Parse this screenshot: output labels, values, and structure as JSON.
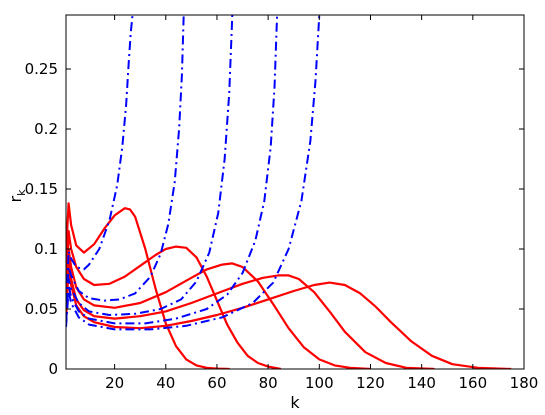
{
  "chart_data": {
    "type": "line",
    "title": "",
    "xlabel": "k",
    "ylabel": {
      "main": "r",
      "subscript": "k"
    },
    "xlim": [
      1,
      180
    ],
    "ylim": [
      0,
      0.295
    ],
    "x_ticks": [
      20,
      40,
      60,
      80,
      100,
      120,
      140,
      160,
      180
    ],
    "y_ticks": [
      0,
      0.05,
      0.1,
      0.15,
      0.2,
      0.25
    ],
    "x_tick_labels": [
      "20",
      "40",
      "60",
      "80",
      "100",
      "120",
      "140",
      "160",
      "180"
    ],
    "y_tick_labels": [
      "0",
      "0.05",
      "0.1",
      "0.15",
      "0.2",
      "0.25"
    ],
    "grid": false,
    "legend": "none",
    "colors": {
      "solid": "#ff0000",
      "dashdot": "#0000ff",
      "axes": "#000000"
    },
    "series": [
      {
        "style": "solid",
        "color": "#ff0000",
        "x": [
          1,
          2,
          3,
          5,
          8,
          12,
          16,
          20,
          24,
          26,
          28,
          32,
          36,
          40,
          44,
          48,
          52,
          56,
          60,
          65
        ],
        "y": [
          0.095,
          0.138,
          0.12,
          0.103,
          0.097,
          0.104,
          0.117,
          0.128,
          0.134,
          0.133,
          0.127,
          0.1,
          0.067,
          0.038,
          0.019,
          0.008,
          0.003,
          0.001,
          0.0003,
          0.0
        ]
      },
      {
        "style": "solid",
        "color": "#ff0000",
        "x": [
          1,
          2,
          3,
          5,
          8,
          12,
          18,
          24,
          30,
          36,
          40,
          44,
          48,
          52,
          56,
          60,
          64,
          68,
          72,
          76,
          80,
          85
        ],
        "y": [
          0.06,
          0.115,
          0.1,
          0.085,
          0.075,
          0.07,
          0.071,
          0.077,
          0.086,
          0.095,
          0.1,
          0.102,
          0.101,
          0.093,
          0.077,
          0.057,
          0.037,
          0.022,
          0.011,
          0.005,
          0.002,
          0.0
        ]
      },
      {
        "style": "solid",
        "color": "#ff0000",
        "x": [
          1,
          2,
          3,
          5,
          8,
          12,
          20,
          30,
          40,
          50,
          56,
          62,
          66,
          70,
          76,
          82,
          88,
          94,
          100,
          106,
          112,
          120
        ],
        "y": [
          0.05,
          0.1,
          0.085,
          0.068,
          0.058,
          0.053,
          0.051,
          0.055,
          0.064,
          0.076,
          0.083,
          0.087,
          0.088,
          0.085,
          0.073,
          0.054,
          0.034,
          0.018,
          0.008,
          0.003,
          0.001,
          0.0
        ]
      },
      {
        "style": "solid",
        "color": "#ff0000",
        "x": [
          1,
          2,
          3,
          5,
          8,
          12,
          20,
          30,
          40,
          50,
          60,
          70,
          78,
          84,
          88,
          92,
          98,
          104,
          110,
          118,
          126,
          134,
          145
        ],
        "y": [
          0.045,
          0.09,
          0.075,
          0.058,
          0.049,
          0.044,
          0.042,
          0.044,
          0.048,
          0.055,
          0.063,
          0.071,
          0.076,
          0.078,
          0.078,
          0.075,
          0.064,
          0.048,
          0.031,
          0.014,
          0.005,
          0.001,
          0.0
        ]
      },
      {
        "style": "solid",
        "color": "#ff0000",
        "x": [
          1,
          2,
          3,
          5,
          8,
          12,
          20,
          30,
          40,
          50,
          60,
          70,
          80,
          90,
          98,
          104,
          110,
          116,
          122,
          128,
          136,
          144,
          152,
          162,
          175
        ],
        "y": [
          0.04,
          0.085,
          0.07,
          0.053,
          0.044,
          0.039,
          0.035,
          0.034,
          0.036,
          0.04,
          0.045,
          0.051,
          0.058,
          0.065,
          0.07,
          0.072,
          0.07,
          0.063,
          0.052,
          0.039,
          0.023,
          0.011,
          0.004,
          0.001,
          0.0
        ]
      },
      {
        "style": "dashdot",
        "color": "#0000ff",
        "x": [
          1,
          2,
          3,
          5,
          8,
          10,
          14,
          18,
          21,
          23,
          24.5,
          25.5,
          26.3,
          27
        ],
        "y": [
          0.04,
          0.098,
          0.092,
          0.085,
          0.083,
          0.087,
          0.1,
          0.124,
          0.153,
          0.185,
          0.22,
          0.255,
          0.28,
          0.295
        ]
      },
      {
        "style": "dashdot",
        "color": "#0000ff",
        "x": [
          1,
          2,
          3,
          6,
          10,
          16,
          22,
          28,
          34,
          38,
          41,
          43.5,
          45.2,
          46.3,
          47
        ],
        "y": [
          0.04,
          0.085,
          0.078,
          0.065,
          0.059,
          0.057,
          0.058,
          0.063,
          0.077,
          0.096,
          0.121,
          0.156,
          0.2,
          0.245,
          0.295
        ]
      },
      {
        "style": "dashdot",
        "color": "#0000ff",
        "x": [
          1,
          2,
          3,
          6,
          10,
          18,
          28,
          38,
          46,
          52,
          57,
          60.5,
          63,
          64.8,
          66
        ],
        "y": [
          0.04,
          0.075,
          0.067,
          0.055,
          0.048,
          0.045,
          0.046,
          0.05,
          0.058,
          0.073,
          0.097,
          0.13,
          0.175,
          0.23,
          0.295
        ]
      },
      {
        "style": "dashdot",
        "color": "#0000ff",
        "x": [
          1,
          2,
          3,
          6,
          10,
          20,
          32,
          44,
          56,
          64,
          70,
          75,
          78.5,
          81,
          82.5,
          83.5
        ],
        "y": [
          0.04,
          0.07,
          0.06,
          0.048,
          0.042,
          0.038,
          0.038,
          0.042,
          0.05,
          0.062,
          0.08,
          0.107,
          0.14,
          0.185,
          0.235,
          0.295
        ]
      },
      {
        "style": "dashdot",
        "color": "#0000ff",
        "x": [
          1,
          2,
          3,
          6,
          10,
          20,
          34,
          48,
          62,
          74,
          82,
          88,
          93,
          96.5,
          98.5,
          100
        ],
        "y": [
          0.035,
          0.065,
          0.055,
          0.043,
          0.037,
          0.033,
          0.033,
          0.036,
          0.043,
          0.055,
          0.072,
          0.1,
          0.14,
          0.19,
          0.24,
          0.295
        ]
      }
    ]
  }
}
